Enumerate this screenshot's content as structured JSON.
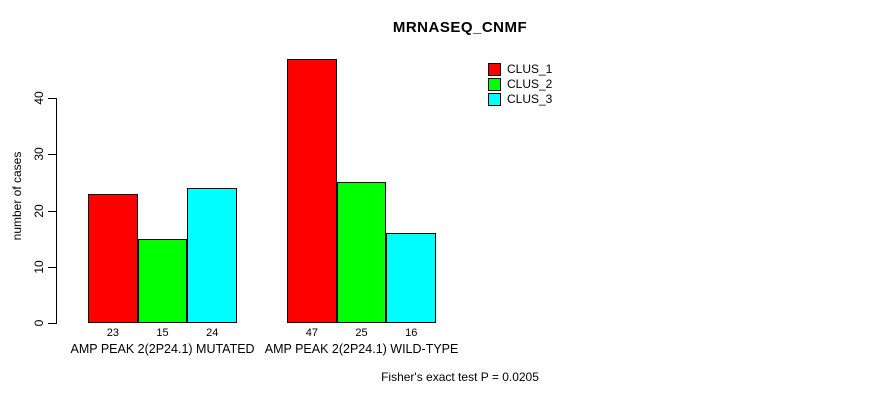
{
  "title": "MRNASEQ_CNMF",
  "y_axis": {
    "label": "number of cases",
    "ticks": [
      0,
      10,
      20,
      30,
      40
    ]
  },
  "footnote": "Fisher's exact test P = 0.0205",
  "chart_data": {
    "type": "bar",
    "title": "MRNASEQ_CNMF",
    "xlabel": "",
    "ylabel": "number of cases",
    "ylim": [
      0,
      40
    ],
    "yticks": [
      0,
      10,
      20,
      30,
      40
    ],
    "grid": false,
    "legend_position": "top-right",
    "bar_value_labels_shown": true,
    "categories": [
      "AMP PEAK 2(2P24.1) MUTATED",
      "AMP PEAK 2(2P24.1) WILD-TYPE"
    ],
    "series": [
      {
        "name": "CLUS_1",
        "color": "#ff0000",
        "values": [
          23,
          47
        ]
      },
      {
        "name": "CLUS_2",
        "color": "#00ff00",
        "values": [
          15,
          25
        ]
      },
      {
        "name": "CLUS_3",
        "color": "#00ffff",
        "values": [
          24,
          16
        ]
      }
    ],
    "annotation": "Fisher's exact test P = 0.0205"
  }
}
